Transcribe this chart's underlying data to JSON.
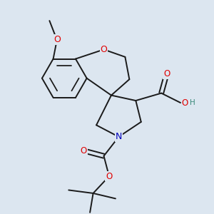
{
  "bg_color": "#dce6f0",
  "bond_color": "#1a1a1a",
  "bond_width": 1.4,
  "atom_colors": {
    "O": "#e00000",
    "N": "#0000bb",
    "C": "#1a1a1a",
    "H": "#3a8a7a"
  },
  "font_size": 8.5
}
